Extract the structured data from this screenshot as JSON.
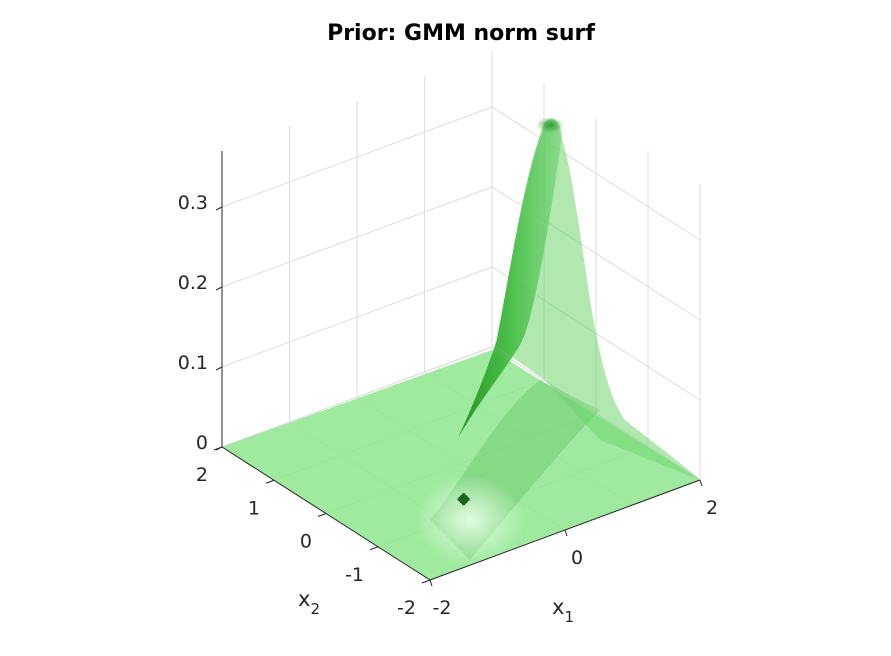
{
  "chart_data": {
    "type": "surface",
    "title": "Prior: GMM norm surf",
    "xlabel": "x",
    "xlabel_subscript": "1",
    "ylabel": "x",
    "ylabel_subscript": "2",
    "zlabel": "",
    "xlim": [
      -2,
      2
    ],
    "ylim": [
      -2,
      2
    ],
    "zlim": [
      0,
      0.35
    ],
    "x_ticks": [
      "-2",
      "0",
      "2"
    ],
    "y_ticks": [
      "-2",
      "-1",
      "0",
      "1",
      "2"
    ],
    "z_ticks": [
      "0",
      "0.1",
      "0.2",
      "0.3"
    ],
    "grid": true,
    "surface": {
      "description_values": "Gaussian mixture density surface",
      "peak_location": [
        1.4,
        1.8
      ],
      "peak_value": 0.33,
      "color": "#3cc83c"
    },
    "marker": {
      "x": -0.5,
      "y": -0.7,
      "z": 0,
      "color": "#1e641e"
    }
  }
}
